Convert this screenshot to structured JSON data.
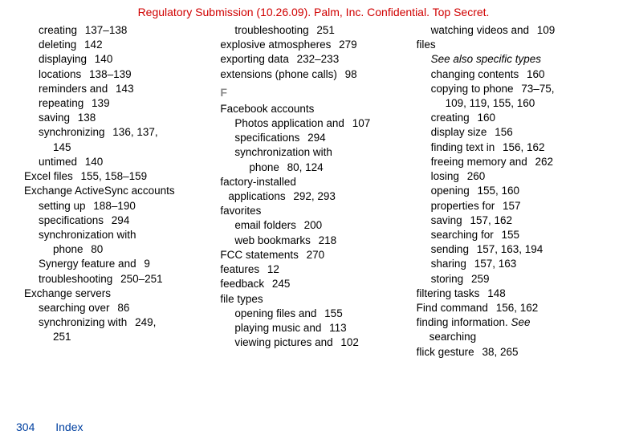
{
  "header": "Regulatory Submission (10.26.09). Palm, Inc. Confidential. Top Secret.",
  "footer": {
    "page": "304",
    "label": "Index"
  },
  "section_letter": "F",
  "col1": [
    {
      "lvl": 1,
      "t": "creating",
      "p": "137–138"
    },
    {
      "lvl": 1,
      "t": "deleting",
      "p": "142"
    },
    {
      "lvl": 1,
      "t": "displaying",
      "p": "140"
    },
    {
      "lvl": 1,
      "t": "locations",
      "p": "138–139"
    },
    {
      "lvl": 1,
      "t": "reminders and",
      "p": "143"
    },
    {
      "lvl": 1,
      "t": "repeating",
      "p": "139"
    },
    {
      "lvl": 1,
      "t": "saving",
      "p": "138"
    },
    {
      "lvl": 1,
      "t": "synchronizing",
      "p": "136, 137, ",
      "cont": "145"
    },
    {
      "lvl": 1,
      "t": "untimed",
      "p": "140"
    },
    {
      "lvl": 0,
      "t": "Excel files",
      "p": "155, 158–159"
    },
    {
      "lvl": 0,
      "t": "Exchange ActiveSync accounts",
      "wrap": true
    },
    {
      "lvl": 1,
      "t": "setting up",
      "p": "188–190"
    },
    {
      "lvl": 1,
      "t": "specifications",
      "p": "294"
    },
    {
      "lvl": 1,
      "t": "synchronization with phone",
      "p": "80",
      "wrap": true,
      "cont_text": true
    },
    {
      "lvl": 1,
      "t": "Synergy feature and",
      "p": "9"
    },
    {
      "lvl": 1,
      "t": "troubleshooting",
      "p": "250–251"
    },
    {
      "lvl": 0,
      "t": "Exchange servers"
    },
    {
      "lvl": 1,
      "t": "searching over",
      "p": "86"
    },
    {
      "lvl": 1,
      "t": "synchronizing with",
      "p": "249, ",
      "cont": "251"
    }
  ],
  "col2": [
    {
      "lvl": 1,
      "t": "troubleshooting",
      "p": "251"
    },
    {
      "lvl": 0,
      "t": "explosive atmospheres",
      "p": "279"
    },
    {
      "lvl": 0,
      "t": "exporting data",
      "p": "232–233"
    },
    {
      "lvl": 0,
      "t": "extensions (phone calls)",
      "p": "98"
    },
    {
      "letter": true
    },
    {
      "lvl": 0,
      "t": "Facebook accounts"
    },
    {
      "lvl": 1,
      "t": "Photos application and",
      "p": "107"
    },
    {
      "lvl": 1,
      "t": "specifications",
      "p": "294"
    },
    {
      "lvl": 1,
      "t": "synchronization with phone",
      "p": "80, 124",
      "wrap": true,
      "cont_text": true
    },
    {
      "lvl": 0,
      "t": "factory-installed applications",
      "p": "292, 293",
      "wrap": true,
      "cont_text_l1": true
    },
    {
      "lvl": 0,
      "t": "favorites"
    },
    {
      "lvl": 1,
      "t": "email folders",
      "p": "200"
    },
    {
      "lvl": 1,
      "t": "web bookmarks",
      "p": "218"
    },
    {
      "lvl": 0,
      "t": "FCC statements",
      "p": "270"
    },
    {
      "lvl": 0,
      "t": "features",
      "p": "12"
    },
    {
      "lvl": 0,
      "t": "feedback",
      "p": "245"
    },
    {
      "lvl": 0,
      "t": "file types"
    },
    {
      "lvl": 1,
      "t": "opening files and",
      "p": "155"
    },
    {
      "lvl": 1,
      "t": "playing music and",
      "p": "113"
    },
    {
      "lvl": 1,
      "t": "viewing pictures and",
      "p": "102"
    }
  ],
  "col3": [
    {
      "lvl": 1,
      "t": "watching videos and",
      "p": "109"
    },
    {
      "lvl": 0,
      "t": "files"
    },
    {
      "lvl": 1,
      "italic": true,
      "t": "See also specific types"
    },
    {
      "lvl": 1,
      "t": "changing contents",
      "p": "160"
    },
    {
      "lvl": 1,
      "t": "copying to phone",
      "p": "73–75, ",
      "cont": "109, 119, 155, 160"
    },
    {
      "lvl": 1,
      "t": "creating",
      "p": "160"
    },
    {
      "lvl": 1,
      "t": "display size",
      "p": "156"
    },
    {
      "lvl": 1,
      "t": "finding text in",
      "p": "156, 162"
    },
    {
      "lvl": 1,
      "t": "freeing memory and",
      "p": "262"
    },
    {
      "lvl": 1,
      "t": "losing",
      "p": "260"
    },
    {
      "lvl": 1,
      "t": "opening",
      "p": "155, 160"
    },
    {
      "lvl": 1,
      "t": "properties for",
      "p": "157"
    },
    {
      "lvl": 1,
      "t": "saving",
      "p": "157, 162"
    },
    {
      "lvl": 1,
      "t": "searching for",
      "p": "155"
    },
    {
      "lvl": 1,
      "t": "sending",
      "p": "157, 163, 194"
    },
    {
      "lvl": 1,
      "t": "sharing",
      "p": "157, 163"
    },
    {
      "lvl": 1,
      "t": "storing",
      "p": "259"
    },
    {
      "lvl": 0,
      "t": "filtering tasks",
      "p": "148"
    },
    {
      "lvl": 0,
      "t": "Find command",
      "p": "156, 162"
    },
    {
      "lvl": 0,
      "t": "finding information. ",
      "see": "See",
      "cont_plain": "searching"
    },
    {
      "lvl": 0,
      "t": "flick gesture",
      "p": "38, 265"
    }
  ]
}
